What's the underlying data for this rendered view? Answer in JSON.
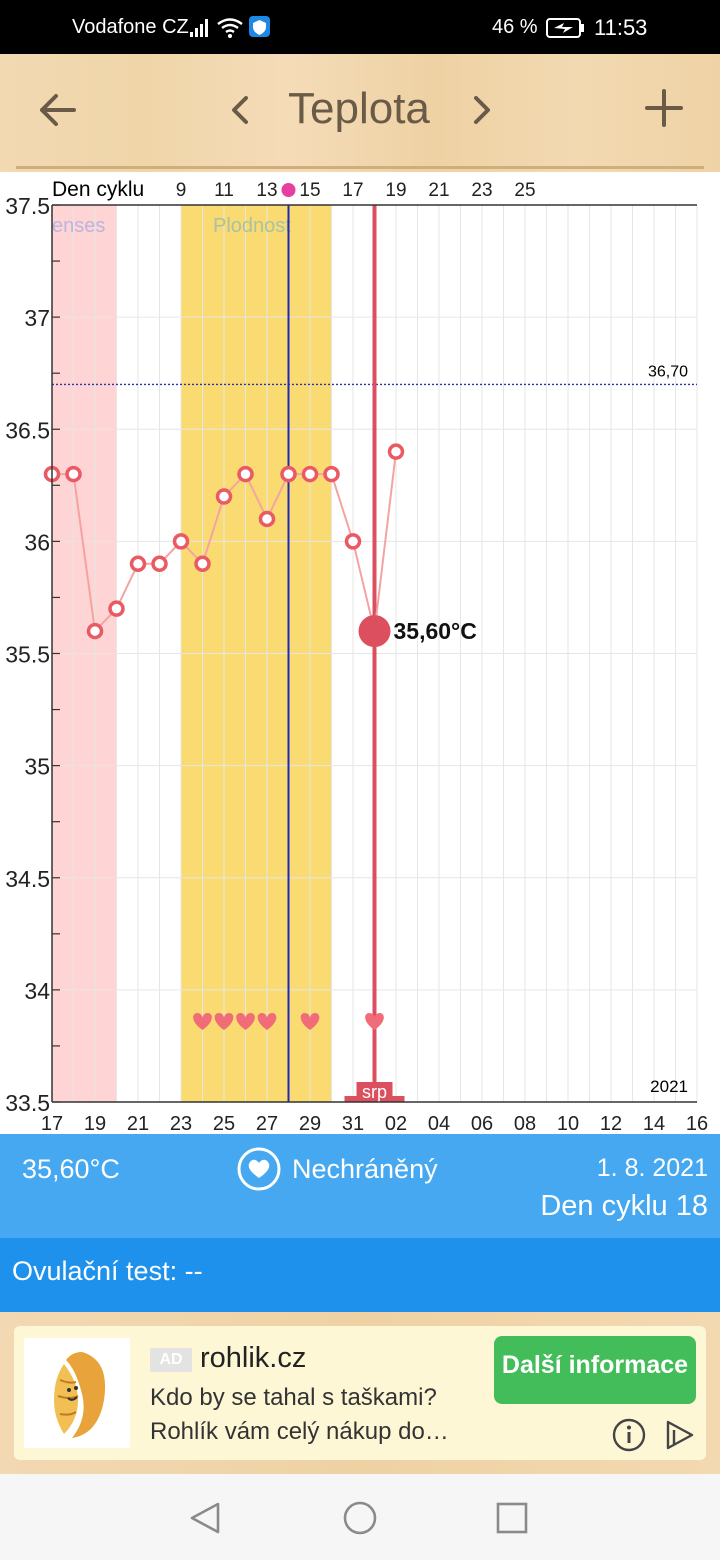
{
  "status_bar": {
    "carrier": "Vodafone CZ",
    "battery_percent": "46 %",
    "time": "11:53",
    "icons": [
      "signal-icon",
      "wifi-icon",
      "vpn-shield-icon",
      "battery-charging-icon"
    ]
  },
  "toolbar": {
    "title": "Teplota",
    "icons": [
      "back-arrow-icon",
      "chevron-left-icon",
      "chevron-right-icon",
      "plus-icon"
    ]
  },
  "chart_data": {
    "type": "line",
    "top_axis_label": "Den cyklu",
    "top_ticks": [
      "9",
      "11",
      "13",
      "15",
      "17",
      "19",
      "21",
      "23",
      "25"
    ],
    "x_tick_labels": [
      "17",
      "19",
      "21",
      "23",
      "25",
      "27",
      "29",
      "31",
      "02",
      "04",
      "06",
      "08",
      "10",
      "12",
      "14",
      "16"
    ],
    "y_tick_labels": [
      "37.5",
      "37",
      "36.5",
      "36",
      "35.5",
      "35",
      "34.5",
      "34",
      "33.5"
    ],
    "ylim": [
      33.5,
      37.5
    ],
    "year_label": "2021",
    "threshold": {
      "value": 36.7,
      "label": "36,70"
    },
    "menses_band": {
      "label": "enses",
      "from": "2021-07-17",
      "to": "2021-07-20"
    },
    "fertile_band": {
      "label": "Plodnost",
      "from": "2021-07-23",
      "to": "2021-07-30"
    },
    "ovulation_day": "2021-07-28",
    "selected": {
      "date": "2021-08-01",
      "value": 35.6,
      "label": "35,60°C"
    },
    "month_label": "srp",
    "points": [
      {
        "date": "2021-07-17",
        "value": 36.3
      },
      {
        "date": "2021-07-18",
        "value": 36.3
      },
      {
        "date": "2021-07-19",
        "value": 35.6
      },
      {
        "date": "2021-07-20",
        "value": 35.7
      },
      {
        "date": "2021-07-21",
        "value": 35.9
      },
      {
        "date": "2021-07-22",
        "value": 35.9
      },
      {
        "date": "2021-07-23",
        "value": 36.0
      },
      {
        "date": "2021-07-24",
        "value": 35.9
      },
      {
        "date": "2021-07-25",
        "value": 36.2
      },
      {
        "date": "2021-07-26",
        "value": 36.3
      },
      {
        "date": "2021-07-27",
        "value": 36.1
      },
      {
        "date": "2021-07-28",
        "value": 36.3
      },
      {
        "date": "2021-07-29",
        "value": 36.3
      },
      {
        "date": "2021-07-30",
        "value": 36.3
      },
      {
        "date": "2021-07-31",
        "value": 36.0
      },
      {
        "date": "2021-08-01",
        "value": 35.6
      },
      {
        "date": "2021-08-02",
        "value": 36.4
      }
    ],
    "heart_days": [
      "2021-07-24",
      "2021-07-25",
      "2021-07-26",
      "2021-07-27",
      "2021-07-29",
      "2021-08-01"
    ],
    "colors": {
      "line": "#f4a3a3",
      "marker": "#ea5a64",
      "menses": "#ffd4d4",
      "fertile": "#fadb72",
      "ovulation": "#1f29b8",
      "selected": "#dc4f5e",
      "threshold": "#2a34a8"
    }
  },
  "info_bar": {
    "temperature": "35,60°C",
    "protection": "Nechráněný",
    "date": "1. 8. 2021",
    "cycle_day": "Den cyklu 18",
    "icon": "heart-circle-icon"
  },
  "ovulation_test": {
    "label": "Ovulační test: --"
  },
  "ad": {
    "badge": "AD",
    "brand": "rohlik.cz",
    "line1": "Kdo by se tahal s taškami?",
    "line2": "Rohlík vám celý nákup do…",
    "cta": "Další informace",
    "icons": [
      "croissant-logo-icon",
      "info-icon",
      "adchoices-play-icon"
    ]
  },
  "nav_bar": {
    "icons": [
      "nav-back-icon",
      "nav-home-icon",
      "nav-recents-icon"
    ]
  }
}
